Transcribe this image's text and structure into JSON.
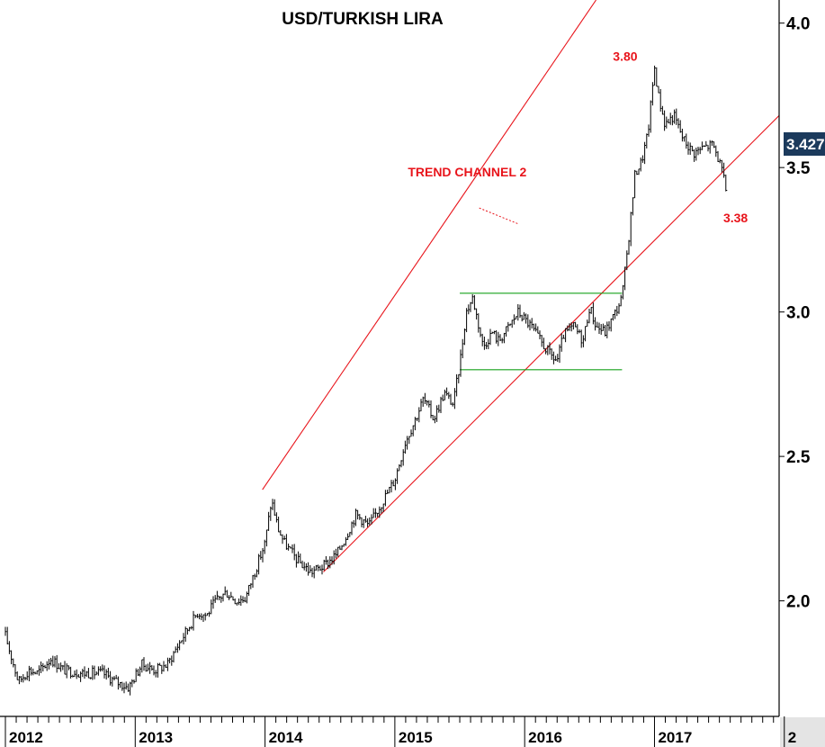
{
  "chart_data": {
    "type": "line",
    "style": "ohlc-bars",
    "title": "USD/TURKISH LIRA",
    "xlabel": "",
    "ylabel": "",
    "x_ticks": [
      "2012",
      "2013",
      "2014",
      "2015",
      "2016",
      "2017",
      "2"
    ],
    "y_ticks": [
      "2.0",
      "2.5",
      "3.0",
      "3.5",
      "4.0"
    ],
    "xlim": [
      2012.0,
      2017.96
    ],
    "ylim": [
      1.6,
      4.08
    ],
    "grid": false,
    "axis_position": "right",
    "last_value_label": "3.427",
    "last_value_color": "#1b3a5c",
    "price_color": "#000000",
    "x": [
      2012.0,
      2012.05,
      2012.1,
      2012.18,
      2012.25,
      2012.35,
      2012.45,
      2012.6,
      2012.75,
      2012.85,
      2012.95,
      2013.05,
      2013.15,
      2013.25,
      2013.32,
      2013.4,
      2013.48,
      2013.55,
      2013.62,
      2013.7,
      2013.78,
      2013.85,
      2013.92,
      2014.0,
      2014.05,
      2014.1,
      2014.15,
      2014.25,
      2014.35,
      2014.45,
      2014.55,
      2014.62,
      2014.7,
      2014.8,
      2014.9,
      2015.0,
      2015.08,
      2015.15,
      2015.22,
      2015.3,
      2015.38,
      2015.45,
      2015.5,
      2015.55,
      2015.6,
      2015.68,
      2015.75,
      2015.8,
      2015.88,
      2015.95,
      2016.05,
      2016.12,
      2016.2,
      2016.25,
      2016.3,
      2016.38,
      2016.45,
      2016.5,
      2016.55,
      2016.62,
      2016.7,
      2016.75,
      2016.8,
      2016.85,
      2016.9,
      2016.95,
      2017.0,
      2017.03,
      2017.08,
      2017.15,
      2017.22,
      2017.3,
      2017.38,
      2017.45,
      2017.5,
      2017.55
    ],
    "values": [
      1.88,
      1.8,
      1.72,
      1.76,
      1.75,
      1.8,
      1.76,
      1.75,
      1.75,
      1.72,
      1.7,
      1.78,
      1.76,
      1.78,
      1.84,
      1.9,
      1.96,
      1.95,
      2.0,
      2.03,
      2.0,
      2.01,
      2.1,
      2.2,
      2.35,
      2.25,
      2.2,
      2.14,
      2.1,
      2.12,
      2.16,
      2.22,
      2.3,
      2.26,
      2.34,
      2.42,
      2.55,
      2.62,
      2.7,
      2.63,
      2.72,
      2.68,
      2.82,
      3.0,
      3.05,
      2.88,
      2.93,
      2.9,
      2.95,
      3.0,
      2.95,
      2.9,
      2.85,
      2.83,
      2.92,
      2.95,
      2.9,
      3.02,
      2.95,
      2.93,
      3.0,
      3.05,
      3.25,
      3.48,
      3.52,
      3.62,
      3.85,
      3.75,
      3.65,
      3.68,
      3.6,
      3.55,
      3.57,
      3.58,
      3.52,
      3.427
    ],
    "trendlines": [
      {
        "color": "#e8141b",
        "from": [
          2013.98,
          2.385
        ],
        "to": [
          2016.55,
          4.08
        ]
      },
      {
        "color": "#e8141b",
        "from": [
          2014.45,
          2.1
        ],
        "to": [
          2017.96,
          3.68
        ]
      },
      {
        "color": "#16a21c",
        "from": [
          2015.5,
          3.065
        ],
        "to": [
          2016.75,
          3.065
        ]
      },
      {
        "color": "#16a21c",
        "from": [
          2015.5,
          2.8
        ],
        "to": [
          2016.75,
          2.8
        ]
      }
    ],
    "annotations": [
      {
        "text": "TREND CHANNEL 2",
        "at": [
          2015.1,
          3.47
        ],
        "color": "#e8141b"
      },
      {
        "text": "3.80",
        "at": [
          2016.68,
          3.87
        ],
        "color": "#e8141b"
      },
      {
        "text": "3.38",
        "at": [
          2017.53,
          3.31
        ],
        "color": "#e8141b"
      }
    ],
    "pointer": {
      "from": [
        2015.65,
        3.36
      ],
      "to": [
        2015.95,
        3.305
      ],
      "color": "#e8141b"
    }
  }
}
